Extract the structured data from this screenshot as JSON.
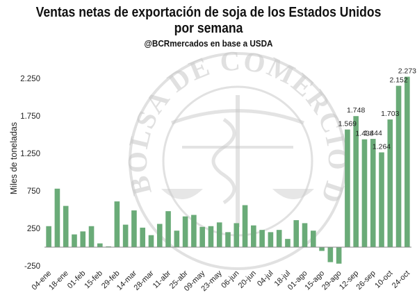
{
  "header": {
    "title_line1": "Ventas netas de exportación de soja de los Estados Unidos",
    "title_line2": "por semana",
    "subtitle": "@BCRmercados en base a USDA"
  },
  "watermark": {
    "text": "BOLSA DE COMERCIO DE ROSARIO"
  },
  "colors": {
    "bar": "#6aab78",
    "axis": "#888888",
    "watermark": "#c8c8c8"
  },
  "chart_data": {
    "type": "bar",
    "title": "Ventas netas de exportación de soja de los Estados Unidos por semana",
    "subtitle": "@BCRmercados en base a USDA",
    "xlabel": "",
    "ylabel": "Miles de toneladas",
    "ylim": [
      -250,
      2400
    ],
    "yticks": [
      -250,
      250,
      750,
      1250,
      1750,
      2250
    ],
    "ytick_labels": [
      "-250",
      "250",
      "750",
      "1.250",
      "1.750",
      "2.250"
    ],
    "grid": false,
    "categories": [
      "04-ene",
      "11-ene",
      "18-ene",
      "25-ene",
      "01-feb",
      "08-feb",
      "15-feb",
      "22-feb",
      "29-feb",
      "07-mar",
      "14-mar",
      "21-mar",
      "28-mar",
      "04-abr",
      "11-abr",
      "18-abr",
      "25-abr",
      "02-may",
      "09-may",
      "16-may",
      "23-may",
      "30-may",
      "06-jun",
      "13-jun",
      "20-jun",
      "27-jun",
      "04-jul",
      "11-jul",
      "18-jul",
      "25-jul",
      "01-ago",
      "08-ago",
      "15-ago",
      "22-ago",
      "29-ago",
      "05-sep",
      "12-sep",
      "19-sep",
      "26-sep",
      "03-oct",
      "10-oct",
      "17-oct",
      "24-oct"
    ],
    "xtick_labels": [
      "04-ene",
      "18-ene",
      "01-feb",
      "15-feb",
      "29-feb",
      "14-mar",
      "28-mar",
      "11-abr",
      "25-abr",
      "09-may",
      "23-may",
      "06-jun",
      "20-jun",
      "04-jul",
      "18-jul",
      "01-ago",
      "15-ago",
      "29-ago",
      "12-sep",
      "26-sep",
      "10-oct",
      "24-oct"
    ],
    "series": [
      {
        "values": [
          280,
          780,
          550,
          170,
          210,
          280,
          50,
          10,
          610,
          300,
          490,
          260,
          160,
          310,
          480,
          220,
          410,
          430,
          270,
          280,
          330,
          200,
          320,
          560,
          290,
          230,
          200,
          230,
          110,
          360,
          320,
          220,
          -50,
          -200,
          -220,
          1569,
          1748,
          1438,
          1444,
          1264,
          1703,
          2152,
          2273
        ]
      }
    ],
    "data_labels": [
      {
        "category": "05-sep",
        "value": 1569,
        "text": "1.569"
      },
      {
        "category": "12-sep",
        "value": 1748,
        "text": "1.748"
      },
      {
        "category": "19-sep",
        "value": 1438,
        "text": "1.438"
      },
      {
        "category": "26-sep",
        "value": 1444,
        "text": "1.444"
      },
      {
        "category": "03-oct",
        "value": 1264,
        "text": "1.264"
      },
      {
        "category": "10-oct",
        "value": 1703,
        "text": "1.703"
      },
      {
        "category": "17-oct",
        "value": 2152,
        "text": "2.152"
      },
      {
        "category": "24-oct",
        "value": 2273,
        "text": "2.273"
      }
    ]
  }
}
